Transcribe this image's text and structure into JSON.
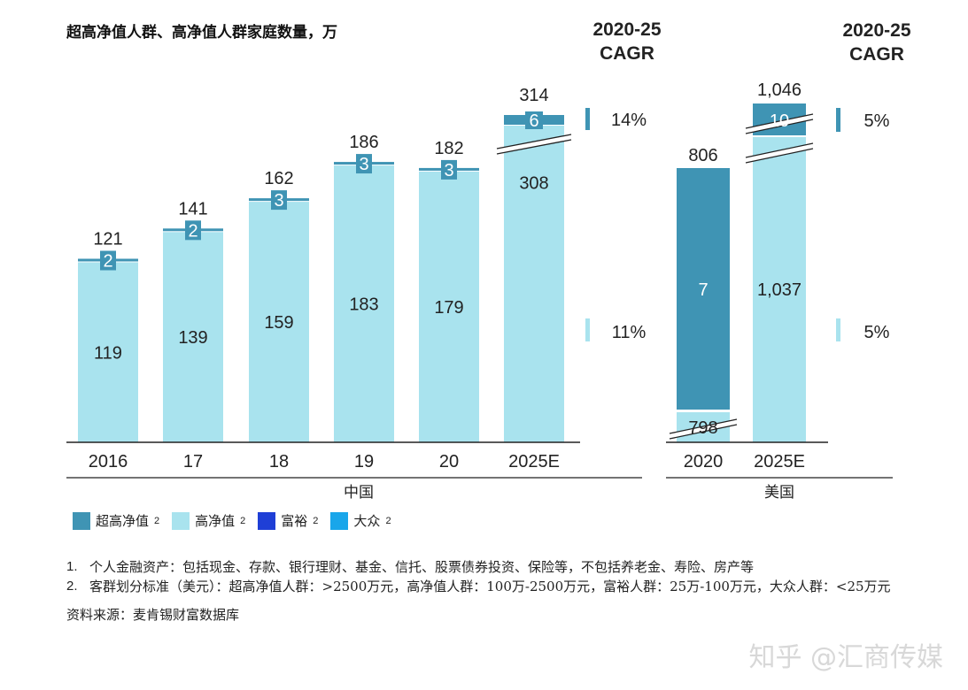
{
  "title": "超高净值人群、高净值人群家庭数量，万",
  "cagr_header": {
    "line1": "2020-25",
    "line2": "CAGR"
  },
  "colors": {
    "uhnw": "#3f94b4",
    "hnw": "#a9e3ee",
    "affluent": "#1f3fd6",
    "mass": "#19a6ea"
  },
  "legend": [
    {
      "label": "超高净值",
      "sup": "2",
      "color": "#3f94b4"
    },
    {
      "label": "高净值",
      "sup": "2",
      "color": "#a9e3ee"
    },
    {
      "label": "富裕",
      "sup": "2",
      "color": "#1f3fd6"
    },
    {
      "label": "大众",
      "sup": "2",
      "color": "#19a6ea"
    }
  ],
  "chart_data": [
    {
      "type": "bar",
      "stacked": true,
      "group_label": "中国",
      "categories": [
        "2016",
        "17",
        "18",
        "19",
        "20",
        "2025E"
      ],
      "series": [
        {
          "name": "高净值",
          "values": [
            119,
            139,
            159,
            183,
            179,
            308
          ]
        },
        {
          "name": "超高净值",
          "values": [
            2,
            2,
            3,
            3,
            3,
            6
          ]
        }
      ],
      "totals": [
        "121",
        "141",
        "162",
        "186",
        "182",
        "314"
      ],
      "value_labels_hnw": [
        "119",
        "139",
        "159",
        "183",
        "179",
        "308"
      ],
      "value_labels_uhnw": [
        "2",
        "2",
        "3",
        "3",
        "3",
        "6"
      ],
      "axis_break_on": [
        "2025E"
      ],
      "cagr": {
        "uhnw": "14%",
        "hnw": "11%"
      }
    },
    {
      "type": "bar",
      "stacked": true,
      "group_label": "美国",
      "categories": [
        "2020",
        "2025E"
      ],
      "series": [
        {
          "name": "高净值",
          "values": [
            798,
            1037
          ]
        },
        {
          "name": "超高净值",
          "values": [
            7,
            10
          ]
        }
      ],
      "totals": [
        "806",
        "1,046"
      ],
      "value_labels_hnw": [
        "798",
        "1,037"
      ],
      "value_labels_uhnw": [
        "7",
        "10"
      ],
      "axis_break_on": [
        "2020",
        "2025E"
      ],
      "cagr": {
        "uhnw": "5%",
        "hnw": "5%"
      }
    }
  ],
  "notes": [
    {
      "n": "1.",
      "text": "个人金融资产：包括现金、存款、银行理财、基金、信托、股票债券投资、保险等，不包括养老金、寿险、房产等"
    },
    {
      "n": "2.",
      "text": "客群划分标准（美元）：超高净值人群：>2500万元，高净值人群：100万-2500万元，富裕人群：25万-100万元，大众人群：<25万元"
    }
  ],
  "source": "资料来源：麦肯锡财富数据库",
  "watermark": "知乎 @汇商传媒"
}
